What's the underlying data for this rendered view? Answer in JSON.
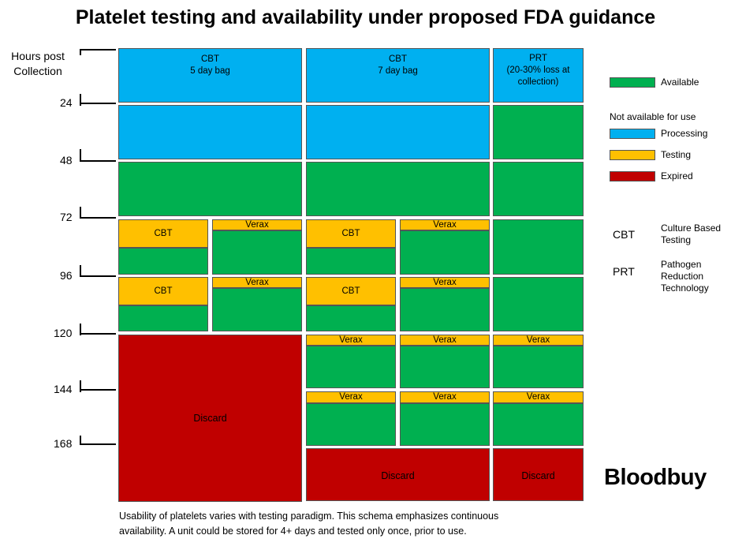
{
  "title": "Platelet testing and availability under proposed FDA guidance",
  "y_axis": {
    "label_line1": "Hours post",
    "label_line2": "Collection",
    "ticks": [
      "24",
      "48",
      "72",
      "96",
      "120",
      "144",
      "168"
    ]
  },
  "columns": {
    "cbt5_line1": "CBT",
    "cbt5_line2": "5 day bag",
    "cbt7_line1": "CBT",
    "cbt7_line2": "7 day bag",
    "prt_line1": "PRT",
    "prt_line2": "(20-30% loss at",
    "prt_line3": "collection)"
  },
  "cell_labels": {
    "cbt": "CBT",
    "verax": "Verax",
    "discard": "Discard"
  },
  "legend": {
    "available": "Available",
    "not_available": "Not available for use",
    "processing": "Processing",
    "testing": "Testing",
    "expired": "Expired"
  },
  "colors": {
    "available": "#00b050",
    "processing": "#00b0f0",
    "testing": "#ffc000",
    "expired": "#c00000"
  },
  "abbreviations": {
    "cbt_abbr": "CBT",
    "cbt_line1": "Culture Based",
    "cbt_line2": "Testing",
    "prt_abbr": "PRT",
    "prt_line1": "Pathogen",
    "prt_line2": "Reduction",
    "prt_line3": "Technology"
  },
  "note": {
    "line1": "Usability of platelets varies with testing paradigm. This schema emphasizes continuous",
    "line2": "availability. A unit could be stored for 4+ days and tested only once, prior to use."
  },
  "logo": {
    "text": "Bloodbuy"
  }
}
